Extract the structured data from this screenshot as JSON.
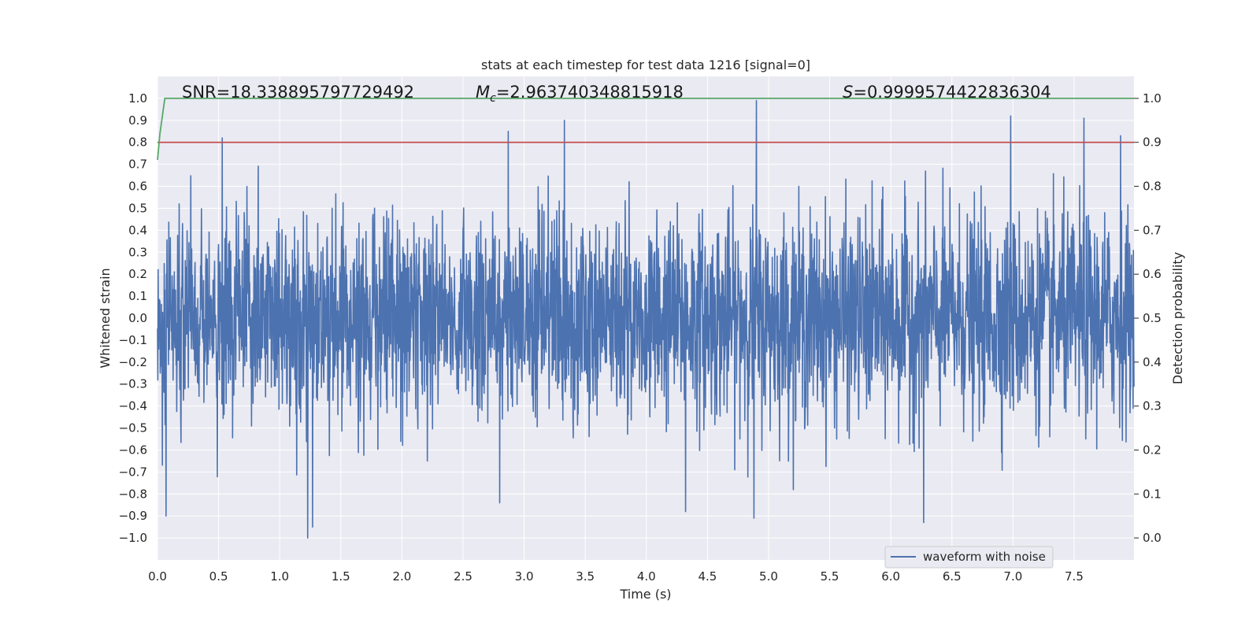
{
  "chart_data": {
    "type": "line",
    "title": "stats at each timestep for test data 1216 [signal=0]",
    "xlabel": "Time (s)",
    "ylabel_left": "Whitened strain",
    "ylabel_right": "Detection probability",
    "xlim": [
      0.0,
      7.99
    ],
    "ylim_left": [
      -1.1,
      1.1
    ],
    "ylim_right": [
      -0.05,
      1.05
    ],
    "x_ticks": [
      0.0,
      0.5,
      1.0,
      1.5,
      2.0,
      2.5,
      3.0,
      3.5,
      4.0,
      4.5,
      5.0,
      5.5,
      6.0,
      6.5,
      7.0,
      7.5
    ],
    "x_tick_labels": [
      "0.0",
      "0.5",
      "1.0",
      "1.5",
      "2.0",
      "2.5",
      "3.0",
      "3.5",
      "4.0",
      "4.5",
      "5.0",
      "5.5",
      "6.0",
      "6.5",
      "7.0",
      "7.5"
    ],
    "y_left_ticks": [
      1.0,
      0.9,
      0.8,
      0.7,
      0.6,
      0.5,
      0.4,
      0.3,
      0.2,
      0.1,
      0.0,
      -0.1,
      -0.2,
      -0.3,
      -0.4,
      -0.5,
      -0.6,
      -0.7,
      -0.8,
      -0.9,
      -1.0
    ],
    "y_left_tick_labels": [
      "1.0",
      "0.9",
      "0.8",
      "0.7",
      "0.6",
      "0.5",
      "0.4",
      "0.3",
      "0.2",
      "0.1",
      "0.0",
      "−0.1",
      "−0.2",
      "−0.3",
      "−0.4",
      "−0.5",
      "−0.6",
      "−0.7",
      "−0.8",
      "−0.9",
      "−1.0"
    ],
    "y_right_ticks": [
      1.0,
      0.9,
      0.8,
      0.7,
      0.6,
      0.5,
      0.4,
      0.3,
      0.2,
      0.1,
      0.0
    ],
    "y_right_tick_labels": [
      "1.0",
      "0.9",
      "0.8",
      "0.7",
      "0.6",
      "0.5",
      "0.4",
      "0.3",
      "0.2",
      "0.1",
      "0.0"
    ],
    "grid": true,
    "legend": {
      "position": "bottom-right",
      "entries": [
        "waveform with noise"
      ]
    },
    "annotations": {
      "snr": "SNR=18.338895797729492",
      "mc_symbol": "M",
      "mc_sub": "c",
      "mc_value": "=2.963740348815918",
      "s_symbol": "S",
      "s_value": "=0.9999574422836304"
    },
    "series": [
      {
        "name": "waveform with noise",
        "axis": "left",
        "color": "#4c72b0",
        "description": "noisy whitened strain, mostly within ±0.4, peaks near ±1.0",
        "envelope_typical": 0.55,
        "peaks": [
          {
            "t": 0.53,
            "v": 0.82
          },
          {
            "t": 2.87,
            "v": 0.85
          },
          {
            "t": 3.33,
            "v": 0.9
          },
          {
            "t": 4.9,
            "v": 0.99
          },
          {
            "t": 6.98,
            "v": 0.92
          },
          {
            "t": 7.58,
            "v": 0.91
          },
          {
            "t": 7.88,
            "v": 0.83
          },
          {
            "t": 0.07,
            "v": -0.9
          },
          {
            "t": 1.23,
            "v": -1.0
          },
          {
            "t": 1.27,
            "v": -0.95
          },
          {
            "t": 4.88,
            "v": -0.91
          },
          {
            "t": 6.27,
            "v": -0.93
          },
          {
            "t": 2.8,
            "v": -0.84
          },
          {
            "t": 4.32,
            "v": -0.88
          }
        ]
      },
      {
        "name": "threshold",
        "axis": "right",
        "color": "#c44e52",
        "x": [
          0.0,
          7.99
        ],
        "y": [
          0.9,
          0.9
        ]
      },
      {
        "name": "detection probability",
        "axis": "right",
        "color": "#55a868",
        "x": [
          0.0,
          0.02,
          0.06,
          7.99
        ],
        "y": [
          0.86,
          0.92,
          1.0,
          1.0
        ]
      }
    ]
  }
}
